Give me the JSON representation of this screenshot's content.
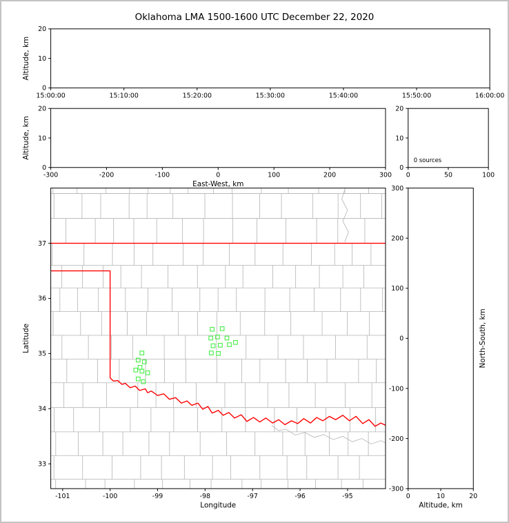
{
  "chart_data": {
    "type": "scatter",
    "title": "Oklahoma LMA 1500-1600 UTC December 22, 2020",
    "colors": {
      "station": "#44ee44",
      "state_border": "#ff0000",
      "county": "#b3b3b3",
      "river": "#b3b3b3",
      "spine": "#000000"
    },
    "panels": {
      "time_height": {
        "ylabel": "Altitude, km",
        "xlim": [
          0,
          3600
        ],
        "ylim": [
          0,
          20
        ],
        "xticks": [
          0,
          600,
          1200,
          1800,
          2400,
          3000,
          3600
        ],
        "xtick_labels": [
          "15:00:00",
          "15:10:00",
          "15:20:00",
          "15:30:00",
          "15:40:00",
          "15:50:00",
          "16:00:00"
        ],
        "yticks": [
          0,
          10,
          20
        ],
        "series": []
      },
      "ew_height": {
        "xlabel": "East-West, km",
        "ylabel": "Altitude, km",
        "xlim": [
          -300,
          300
        ],
        "ylim": [
          0,
          20
        ],
        "xticks": [
          -300,
          -200,
          -100,
          0,
          100,
          200,
          300
        ],
        "yticks": [
          0,
          10,
          20
        ],
        "series": []
      },
      "histogram": {
        "xlim": [
          0,
          100
        ],
        "ylim": [
          0,
          20
        ],
        "xticks": [
          0,
          50,
          100
        ],
        "yticks": [
          0,
          10,
          20
        ],
        "annotation": "0 sources",
        "series": []
      },
      "ns_height": {
        "xlabel": "Altitude, km",
        "ylabel": "North-South, km",
        "xlim": [
          0,
          20
        ],
        "ylim": [
          -300,
          300
        ],
        "xticks": [
          0,
          10,
          20
        ],
        "yticks": [
          -300,
          -200,
          -100,
          0,
          100,
          200,
          300
        ],
        "series": []
      },
      "map": {
        "xlabel": "Longitude",
        "ylabel": "Latitude",
        "xlim": [
          -101.25,
          -94.2
        ],
        "ylim": [
          32.55,
          38.0
        ],
        "xticks": [
          -101,
          -100,
          -99,
          -98,
          -97,
          -96,
          -95
        ],
        "yticks": [
          33,
          34,
          35,
          36,
          37
        ],
        "stations": [
          [
            -99.33,
            35.01
          ],
          [
            -99.41,
            34.88
          ],
          [
            -99.28,
            34.85
          ],
          [
            -99.37,
            34.75
          ],
          [
            -99.46,
            34.7
          ],
          [
            -99.33,
            34.68
          ],
          [
            -99.21,
            34.65
          ],
          [
            -99.41,
            34.54
          ],
          [
            -99.3,
            34.49
          ],
          [
            -97.85,
            35.44
          ],
          [
            -97.64,
            35.45
          ],
          [
            -97.88,
            35.28
          ],
          [
            -97.74,
            35.3
          ],
          [
            -97.54,
            35.28
          ],
          [
            -97.83,
            35.14
          ],
          [
            -97.68,
            35.15
          ],
          [
            -97.49,
            35.16
          ],
          [
            -97.36,
            35.2
          ],
          [
            -97.87,
            35.01
          ],
          [
            -97.72,
            35.0
          ]
        ],
        "state_border": [
          [
            [
              -101.25,
              37.0
            ],
            [
              -94.2,
              37.0
            ]
          ],
          [
            [
              -101.25,
              36.5
            ],
            [
              -100.0,
              36.5
            ],
            [
              -100.0,
              34.56
            ],
            [
              -99.93,
              34.5
            ],
            [
              -99.84,
              34.51
            ],
            [
              -99.75,
              34.44
            ],
            [
              -99.68,
              34.46
            ],
            [
              -99.58,
              34.38
            ],
            [
              -99.47,
              34.41
            ],
            [
              -99.38,
              34.33
            ],
            [
              -99.26,
              34.36
            ],
            [
              -99.21,
              34.29
            ],
            [
              -99.13,
              34.32
            ],
            [
              -99.0,
              34.24
            ],
            [
              -98.87,
              34.27
            ],
            [
              -98.75,
              34.17
            ],
            [
              -98.62,
              34.2
            ],
            [
              -98.5,
              34.1
            ],
            [
              -98.38,
              34.14
            ],
            [
              -98.28,
              34.06
            ],
            [
              -98.15,
              34.1
            ],
            [
              -98.05,
              33.99
            ],
            [
              -97.94,
              34.04
            ],
            [
              -97.85,
              33.92
            ],
            [
              -97.72,
              33.97
            ],
            [
              -97.62,
              33.88
            ],
            [
              -97.5,
              33.93
            ],
            [
              -97.38,
              33.83
            ],
            [
              -97.24,
              33.89
            ],
            [
              -97.12,
              33.77
            ],
            [
              -96.98,
              33.84
            ],
            [
              -96.85,
              33.76
            ],
            [
              -96.72,
              33.83
            ],
            [
              -96.58,
              33.74
            ],
            [
              -96.45,
              33.8
            ],
            [
              -96.32,
              33.71
            ],
            [
              -96.18,
              33.78
            ],
            [
              -96.05,
              33.73
            ],
            [
              -95.92,
              33.82
            ],
            [
              -95.78,
              33.74
            ],
            [
              -95.65,
              33.84
            ],
            [
              -95.52,
              33.78
            ],
            [
              -95.38,
              33.86
            ],
            [
              -95.25,
              33.8
            ],
            [
              -95.1,
              33.88
            ],
            [
              -94.96,
              33.78
            ],
            [
              -94.82,
              33.86
            ],
            [
              -94.68,
              33.73
            ],
            [
              -94.55,
              33.8
            ],
            [
              -94.42,
              33.68
            ],
            [
              -94.3,
              33.74
            ],
            [
              -94.2,
              33.7
            ]
          ]
        ],
        "rivers": [
          [
            [
              -96.6,
              33.7
            ],
            [
              -96.45,
              33.6
            ],
            [
              -96.3,
              33.63
            ],
            [
              -96.1,
              33.52
            ],
            [
              -95.9,
              33.57
            ],
            [
              -95.7,
              33.48
            ],
            [
              -95.5,
              33.53
            ],
            [
              -95.3,
              33.44
            ],
            [
              -95.1,
              33.5
            ],
            [
              -94.9,
              33.4
            ],
            [
              -94.7,
              33.46
            ],
            [
              -94.5,
              33.36
            ],
            [
              -94.3,
              33.42
            ],
            [
              -94.2,
              33.38
            ]
          ],
          [
            [
              -95.05,
              38.0
            ],
            [
              -95.12,
              37.8
            ],
            [
              -95.0,
              37.6
            ],
            [
              -95.1,
              37.4
            ],
            [
              -94.98,
              37.2
            ],
            [
              -95.06,
              37.02
            ]
          ]
        ],
        "county_grid": {
          "lat_lines": [
            32.72,
            33.15,
            33.58,
            34.02,
            34.47,
            34.9,
            35.33,
            35.76,
            36.19,
            36.6,
            37.45,
            37.9
          ],
          "row_bounds": [
            32.55,
            32.72,
            33.15,
            33.58,
            34.02,
            34.47,
            34.9,
            35.33,
            35.76,
            36.19,
            36.6,
            37.0,
            37.45,
            37.9,
            38.0
          ],
          "lon_step": 0.52,
          "seed": 9
        }
      }
    }
  }
}
